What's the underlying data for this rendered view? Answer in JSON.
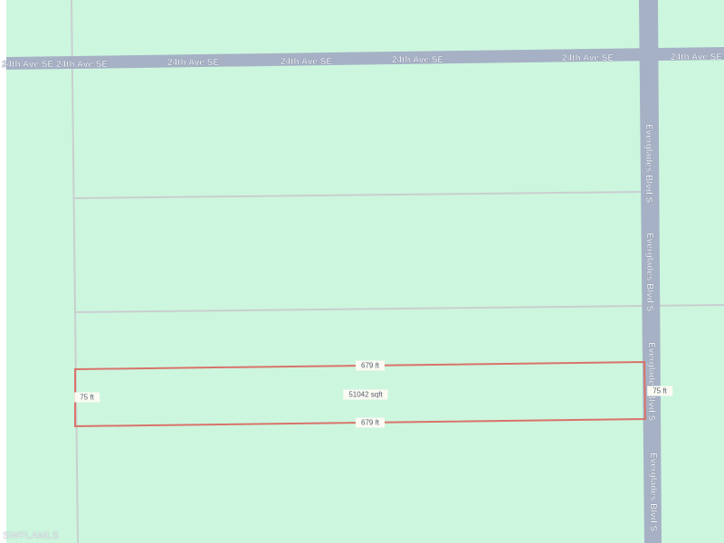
{
  "map": {
    "colors": {
      "land": "#cdf6df",
      "road": "#a6b1c5",
      "parcel_line": "#d9736a",
      "lot_line": "#c9cfcf"
    },
    "roads": {
      "horizontal": {
        "name": "24th Ave SE",
        "labels": [
          "24th Ave SE",
          "24th Ave SE",
          "24th Ave SE",
          "24th Ave SE",
          "24th Ave SE",
          "24th Ave SE"
        ]
      },
      "vertical": {
        "name": "Everglades Blvd S",
        "labels": [
          "Everglades Blvd S",
          "Everglades Blvd S",
          "Everglades Blvd S",
          "Everglades Blvd S"
        ]
      }
    },
    "parcel": {
      "top_length": "679 ft",
      "bottom_length": "679 ft",
      "left_width": "75 ft",
      "right_width": "75 ft",
      "area": "51042 sqft"
    },
    "watermark": "SWFLAMLS"
  }
}
